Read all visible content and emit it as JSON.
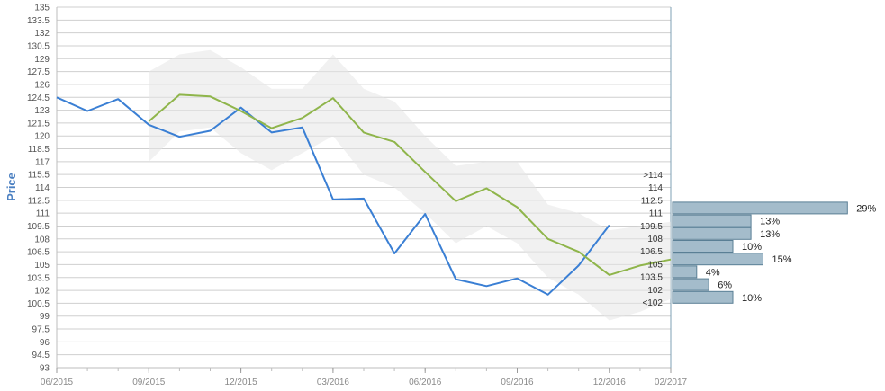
{
  "chart_data": {
    "type": "line",
    "ylabel": "Price",
    "ylim": [
      93,
      135
    ],
    "y_ticks": [
      "93",
      "94.5",
      "96",
      "97.5",
      "99",
      "100.5",
      "102",
      "103.5",
      "105",
      "106.5",
      "108",
      "109.5",
      "111",
      "112.5",
      "114",
      "115.5",
      "117",
      "118.5",
      "120",
      "121.5",
      "123",
      "124.5",
      "126",
      "127.5",
      "129",
      "130.5",
      "132",
      "133.5",
      "135"
    ],
    "x_ticks": [
      "06/2015",
      "09/2015",
      "12/2015",
      "03/2016",
      "06/2016",
      "09/2016",
      "12/2016",
      "02/2017"
    ],
    "x_range": [
      "2015-06",
      "2017-02"
    ],
    "grid": true,
    "series": [
      {
        "color": "#3a7fd4",
        "x": [
          "2015-06",
          "2015-07",
          "2015-08",
          "2015-09",
          "2015-10",
          "2015-11",
          "2015-12",
          "2016-01",
          "2016-02",
          "2016-03",
          "2016-04",
          "2016-05",
          "2016-06",
          "2016-07",
          "2016-08",
          "2016-09",
          "2016-10",
          "2016-11",
          "2016-12"
        ],
        "y": [
          124.5,
          122.9,
          124.3,
          121.3,
          119.9,
          120.6,
          123.3,
          120.4,
          121.0,
          112.6,
          112.7,
          106.3,
          110.9,
          103.3,
          102.5,
          103.4,
          101.5,
          104.9,
          109.6
        ]
      },
      {
        "color": "#8fb54b",
        "x": [
          "2015-09",
          "2015-10",
          "2015-11",
          "2015-12",
          "2016-01",
          "2016-02",
          "2016-03",
          "2016-04",
          "2016-05",
          "2016-06",
          "2016-07",
          "2016-08",
          "2016-09",
          "2016-10",
          "2016-11",
          "2016-12",
          "2017-01",
          "2017-02"
        ],
        "y": [
          121.7,
          124.8,
          124.6,
          122.9,
          120.9,
          122.1,
          124.4,
          120.4,
          119.3,
          115.8,
          112.4,
          113.9,
          111.7,
          108.0,
          106.5,
          103.8,
          104.9,
          105.6
        ]
      }
    ],
    "band": {
      "color": "#e6e6e6",
      "x": [
        "2015-09",
        "2015-10",
        "2015-11",
        "2015-12",
        "2016-01",
        "2016-02",
        "2016-03",
        "2016-04",
        "2016-05",
        "2016-06",
        "2016-07",
        "2016-08",
        "2016-09",
        "2016-10",
        "2016-11",
        "2016-12",
        "2017-01",
        "2017-02"
      ],
      "upper": [
        127.5,
        129.5,
        130.0,
        128.0,
        125.5,
        125.5,
        129.5,
        125.5,
        124.0,
        120.0,
        116.5,
        117.0,
        117.0,
        112.0,
        111.0,
        109.0,
        109.5,
        110.0
      ],
      "lower": [
        117.0,
        120.5,
        121.0,
        118.0,
        116.0,
        118.0,
        120.0,
        115.5,
        114.0,
        111.0,
        107.5,
        109.5,
        107.5,
        103.5,
        101.5,
        98.5,
        99.5,
        101.0
      ]
    },
    "histogram": {
      "color": "#a4bccb",
      "bins": [
        {
          "label": ">114",
          "value": 0,
          "pct": ""
        },
        {
          "label": "114",
          "value": 0,
          "pct": ""
        },
        {
          "label": "112.5",
          "value": 29,
          "pct": "29%"
        },
        {
          "label": "111",
          "value": 13,
          "pct": "13%"
        },
        {
          "label": "109.5",
          "value": 13,
          "pct": "13%"
        },
        {
          "label": "108",
          "value": 10,
          "pct": "10%"
        },
        {
          "label": "106.5",
          "value": 15,
          "pct": "15%"
        },
        {
          "label": "105",
          "value": 4,
          "pct": "4%"
        },
        {
          "label": "103.5",
          "value": 6,
          "pct": "6%"
        },
        {
          "label": "102",
          "value": 10,
          "pct": "10%"
        },
        {
          "label": "<102",
          "value": 0,
          "pct": ""
        }
      ]
    }
  }
}
